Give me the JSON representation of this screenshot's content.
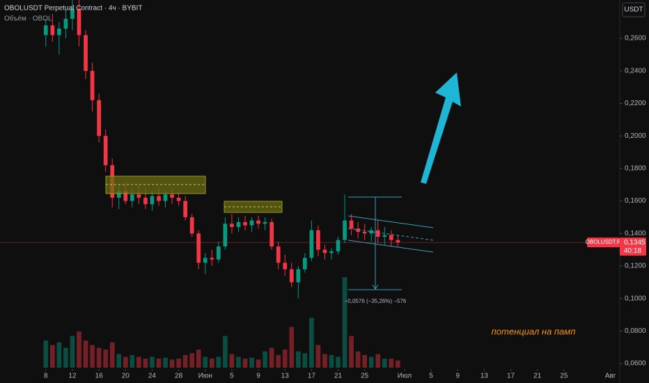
{
  "chart_data": {
    "type": "candlestick",
    "title": "OBOLUSDT Perpetual Contract · 4ч · BYBIT",
    "volume_label": "Объём · OBOL",
    "currency_button": "USDT",
    "symbol_tag": "OBOLUSDT.P",
    "countdown": "40:18",
    "last_price": {
      "value": 0.1345,
      "label": "0,1345"
    },
    "measure_label": "−0,0576 (−35,26%) −576",
    "annotation": "потенциал на памп",
    "up_color": "#089981",
    "down_color": "#f23645",
    "grid": false,
    "x": [
      7,
      8,
      9,
      10,
      11,
      12,
      13,
      14,
      15,
      16,
      17,
      18,
      19,
      20,
      21,
      22,
      23,
      24,
      25,
      26,
      27,
      28,
      29,
      30,
      31,
      32,
      33,
      34,
      35,
      36,
      37,
      38,
      39,
      40,
      41,
      42,
      43,
      44,
      45,
      46,
      47,
      48,
      49,
      50,
      51,
      52,
      53,
      54,
      55,
      56,
      57,
      58,
      59,
      60
    ],
    "open": [
      0.262,
      0.268,
      0.262,
      0.266,
      0.272,
      0.278,
      0.262,
      0.24,
      0.222,
      0.2,
      0.182,
      0.162,
      0.166,
      0.16,
      0.164,
      0.162,
      0.158,
      0.163,
      0.16,
      0.164,
      0.162,
      0.16,
      0.15,
      0.14,
      0.122,
      0.125,
      0.124,
      0.132,
      0.146,
      0.144,
      0.147,
      0.145,
      0.148,
      0.146,
      0.147,
      0.132,
      0.122,
      0.118,
      0.11,
      0.118,
      0.125,
      0.142,
      0.13,
      0.128,
      0.129,
      0.136,
      0.148,
      0.143,
      0.141,
      0.14,
      0.142,
      0.138,
      0.139,
      0.136
    ],
    "high": [
      0.272,
      0.275,
      0.27,
      0.278,
      0.285,
      0.286,
      0.265,
      0.245,
      0.226,
      0.204,
      0.186,
      0.17,
      0.172,
      0.168,
      0.17,
      0.168,
      0.166,
      0.168,
      0.166,
      0.168,
      0.166,
      0.163,
      0.152,
      0.142,
      0.128,
      0.13,
      0.135,
      0.15,
      0.152,
      0.15,
      0.151,
      0.15,
      0.151,
      0.15,
      0.149,
      0.135,
      0.127,
      0.122,
      0.12,
      0.128,
      0.148,
      0.145,
      0.133,
      0.131,
      0.138,
      0.164,
      0.152,
      0.147,
      0.146,
      0.144,
      0.148,
      0.144,
      0.142,
      0.139
    ],
    "low": [
      0.255,
      0.258,
      0.25,
      0.26,
      0.265,
      0.255,
      0.235,
      0.215,
      0.196,
      0.178,
      0.156,
      0.155,
      0.158,
      0.156,
      0.158,
      0.155,
      0.154,
      0.157,
      0.156,
      0.158,
      0.157,
      0.148,
      0.138,
      0.118,
      0.115,
      0.12,
      0.122,
      0.13,
      0.14,
      0.141,
      0.142,
      0.141,
      0.143,
      0.142,
      0.13,
      0.118,
      0.114,
      0.107,
      0.1,
      0.116,
      0.123,
      0.126,
      0.124,
      0.124,
      0.127,
      0.134,
      0.139,
      0.137,
      0.136,
      0.135,
      0.134,
      0.133,
      0.132,
      0.132
    ],
    "close": [
      0.268,
      0.262,
      0.266,
      0.272,
      0.278,
      0.262,
      0.24,
      0.222,
      0.2,
      0.182,
      0.162,
      0.166,
      0.16,
      0.164,
      0.162,
      0.158,
      0.163,
      0.16,
      0.164,
      0.162,
      0.16,
      0.15,
      0.14,
      0.122,
      0.125,
      0.124,
      0.132,
      0.146,
      0.144,
      0.147,
      0.145,
      0.148,
      0.146,
      0.147,
      0.132,
      0.122,
      0.118,
      0.11,
      0.118,
      0.125,
      0.142,
      0.13,
      0.128,
      0.129,
      0.136,
      0.148,
      0.143,
      0.141,
      0.14,
      0.142,
      0.138,
      0.139,
      0.136,
      0.1345
    ],
    "volume": [
      30,
      25,
      28,
      22,
      35,
      40,
      30,
      25,
      22,
      20,
      28,
      15,
      12,
      14,
      12,
      10,
      12,
      10,
      11,
      9,
      10,
      14,
      16,
      20,
      12,
      10,
      12,
      35,
      15,
      12,
      10,
      11,
      9,
      18,
      22,
      14,
      20,
      45,
      18,
      16,
      55,
      25,
      15,
      14,
      12,
      100,
      35,
      18,
      14,
      12,
      15,
      10,
      10,
      8
    ],
    "xlim": [
      0.1,
      93.4
    ],
    "xticks": [
      {
        "value": 7,
        "label": "8"
      },
      {
        "value": 11,
        "label": "12"
      },
      {
        "value": 15,
        "label": "16"
      },
      {
        "value": 19,
        "label": "20"
      },
      {
        "value": 23,
        "label": "24"
      },
      {
        "value": 27,
        "label": "28"
      },
      {
        "value": 31,
        "label": "Июн"
      },
      {
        "value": 35,
        "label": "5"
      },
      {
        "value": 39,
        "label": "9"
      },
      {
        "value": 43,
        "label": "13"
      },
      {
        "value": 47,
        "label": "17"
      },
      {
        "value": 51,
        "label": "21"
      },
      {
        "value": 55,
        "label": "25"
      },
      {
        "value": 61,
        "label": "Июл"
      },
      {
        "value": 65,
        "label": "5"
      },
      {
        "value": 69,
        "label": "9"
      },
      {
        "value": 73,
        "label": "13"
      },
      {
        "value": 77,
        "label": "17"
      },
      {
        "value": 81,
        "label": "21"
      },
      {
        "value": 85,
        "label": "25"
      },
      {
        "value": 92,
        "label": "Авг"
      }
    ],
    "ylim": [
      0.0566,
      0.2836
    ],
    "yticks": [
      {
        "value": 0.06,
        "label": "0,0600"
      },
      {
        "value": 0.08,
        "label": "0,0800"
      },
      {
        "value": 0.1,
        "label": "0,1000"
      },
      {
        "value": 0.12,
        "label": "0,1200"
      },
      {
        "value": 0.14,
        "label": "0,1400"
      },
      {
        "value": 0.16,
        "label": "0,1600"
      },
      {
        "value": 0.18,
        "label": "0,1800"
      },
      {
        "value": 0.2,
        "label": "0,2000"
      },
      {
        "value": 0.22,
        "label": "0,2200"
      },
      {
        "value": 0.24,
        "label": "0,2400"
      },
      {
        "value": 0.26,
        "label": "0,2600"
      }
    ]
  }
}
